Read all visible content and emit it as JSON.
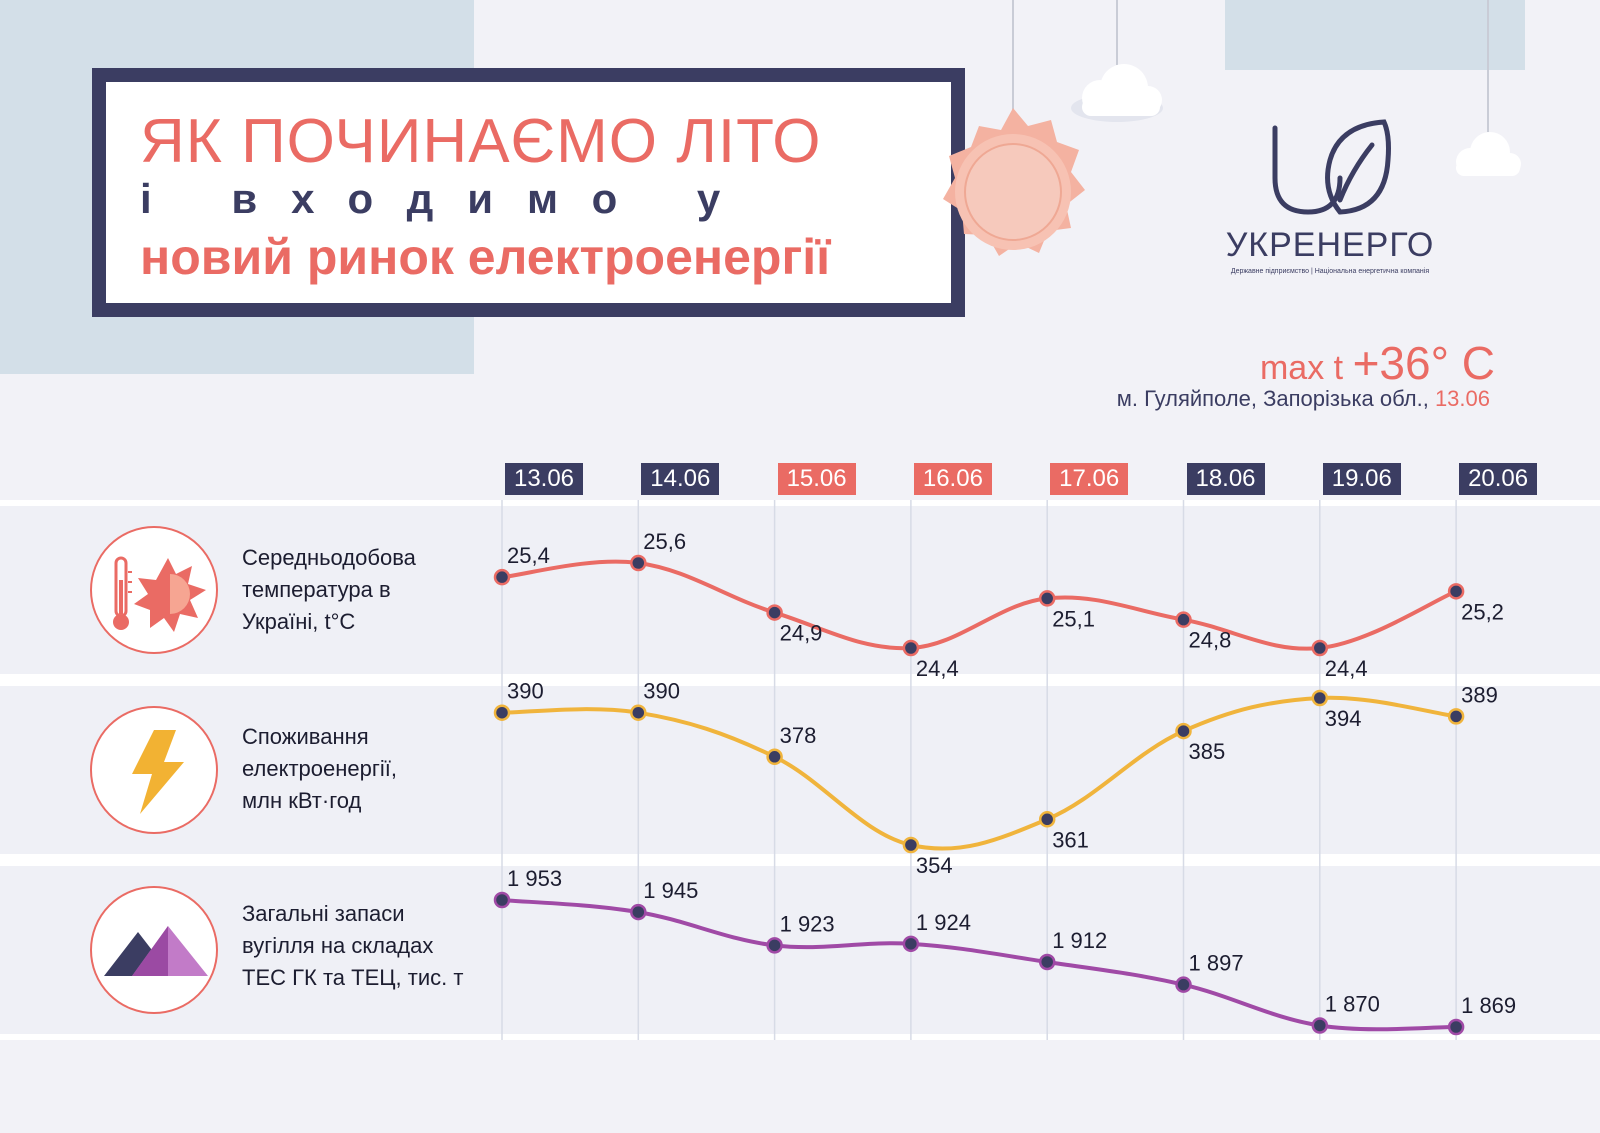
{
  "header": {
    "title_line1": "ЯК ПОЧИНАЄМО ЛІТО",
    "title_line2": "і входимо у",
    "title_line3": "новий ринок електроенергії"
  },
  "logo": {
    "name": "УКРЕНЕРГО",
    "subtitle": "Державне підприємство | Національна енергетична компанія"
  },
  "highlight": {
    "label": "max t ",
    "value": "+36° C",
    "location": "м. Гуляйполе, Запорізька обл., ",
    "date": "13.06"
  },
  "colors": {
    "navy": "#3b3d62",
    "coral": "#ea6b64",
    "temperature_line": "#ea6b64",
    "consumption_line": "#f0b43c",
    "coal_line": "#a04aa6",
    "point": "#3b3d62"
  },
  "chart_data": {
    "type": "line",
    "x": [
      "13.06",
      "14.06",
      "15.06",
      "16.06",
      "17.06",
      "18.06",
      "19.06",
      "20.06"
    ],
    "highlighted_dates": [
      "15.06",
      "16.06",
      "17.06"
    ],
    "series": [
      {
        "name_lines": [
          "Середньодобова",
          "температура в",
          "Україні, t°C"
        ],
        "icon": "thermometer-sun-icon",
        "values": [
          25.4,
          25.6,
          24.9,
          24.4,
          25.1,
          24.8,
          24.4,
          25.2
        ],
        "labels": [
          "25,4",
          "25,6",
          "24,9",
          "24,4",
          "25,1",
          "24,8",
          "24,4",
          "25,2"
        ]
      },
      {
        "name_lines": [
          "Споживання",
          "електроенергії,",
          "млн кВт·год"
        ],
        "icon": "lightning-icon",
        "values": [
          390,
          390,
          378,
          354,
          361,
          385,
          394,
          389
        ],
        "labels": [
          "390",
          "390",
          "378",
          "354",
          "361",
          "385",
          "394",
          "389"
        ]
      },
      {
        "name_lines": [
          "Загальні запаси",
          "вугілля на складах",
          "ТЕС ГК та ТЕЦ, тис. т"
        ],
        "icon": "mountains-icon",
        "values": [
          1953,
          1945,
          1923,
          1924,
          1912,
          1897,
          1870,
          1869
        ],
        "labels": [
          "1 953",
          "1 945",
          "1 923",
          "1 924",
          "1 912",
          "1 897",
          "1 870",
          "1 869"
        ]
      }
    ]
  }
}
